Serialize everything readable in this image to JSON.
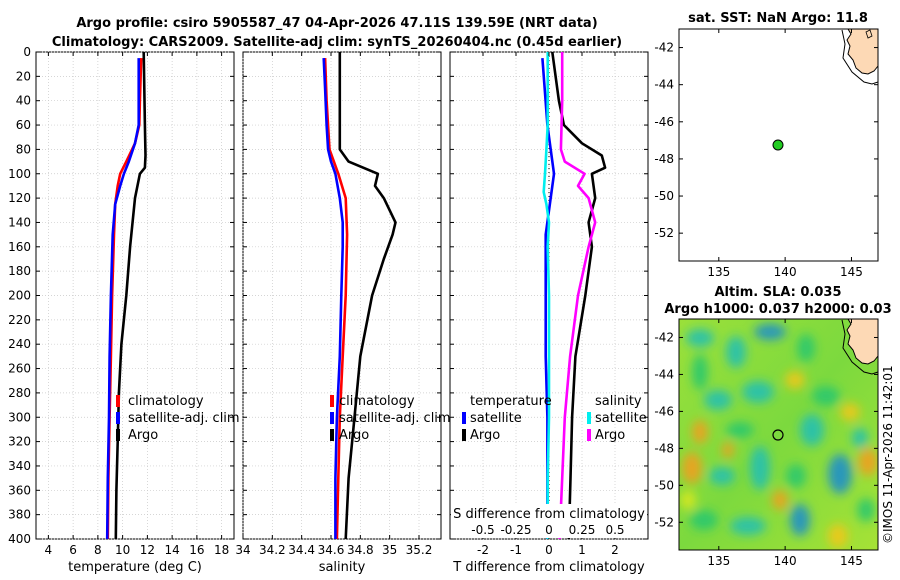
{
  "title": {
    "line1": "Argo profile: csiro 5905587_47 04-Apr-2026 47.11S 139.59E (NRT data)",
    "line2": "Climatology: CARS2009. Satellite-adj clim: synTS_20260404.nc (0.45d earlier)"
  },
  "colors": {
    "climatology": "#ff0000",
    "satellite": "#0000ff",
    "argo": "#000000",
    "salinity_satellite": "#00eeee",
    "salinity_argo": "#ff00ff",
    "land": "#fdd9b5",
    "sst_ocean": "#ffffff",
    "argo_marker": "#22cc22"
  },
  "chart_data": [
    {
      "type": "line",
      "id": "temperature",
      "xlabel": "temperature (deg C)",
      "ylabel": "",
      "xlim": [
        3,
        19
      ],
      "ylim": [
        400,
        0
      ],
      "xticks": [
        4,
        6,
        8,
        10,
        12,
        14,
        16,
        18
      ],
      "yticks": [
        0,
        20,
        40,
        60,
        80,
        100,
        120,
        140,
        160,
        180,
        200,
        220,
        240,
        260,
        280,
        300,
        320,
        340,
        360,
        380,
        400
      ],
      "grid": true,
      "legend_position": "lower-right",
      "legend": [
        "climatology",
        "satellite-adj. clim",
        "Argo"
      ],
      "series": [
        {
          "name": "climatology",
          "color_key": "climatology",
          "depth": [
            5,
            40,
            60,
            75,
            90,
            100,
            110,
            125,
            150,
            200,
            250,
            300,
            350,
            400
          ],
          "values": [
            11.5,
            11.4,
            11.35,
            11.0,
            10.3,
            9.8,
            9.6,
            9.4,
            9.3,
            9.15,
            9.05,
            8.95,
            8.85,
            8.8
          ]
        },
        {
          "name": "satellite-adj. clim",
          "color_key": "satellite",
          "depth": [
            5,
            40,
            60,
            75,
            90,
            100,
            110,
            125,
            150,
            200,
            250,
            300,
            350,
            400
          ],
          "values": [
            11.3,
            11.3,
            11.3,
            11.0,
            10.5,
            10.1,
            9.8,
            9.4,
            9.2,
            9.05,
            8.95,
            8.9,
            8.8,
            8.75
          ]
        },
        {
          "name": "Argo",
          "color_key": "argo",
          "depth": [
            0,
            30,
            60,
            85,
            95,
            100,
            120,
            160,
            200,
            240,
            280,
            320,
            360,
            400
          ],
          "values": [
            11.7,
            11.75,
            11.8,
            11.85,
            11.8,
            11.4,
            11.0,
            10.6,
            10.3,
            9.9,
            9.7,
            9.6,
            9.5,
            9.45
          ]
        }
      ]
    },
    {
      "type": "line",
      "id": "salinity",
      "xlabel": "salinity",
      "ylabel": "",
      "xlim": [
        34.0,
        35.35
      ],
      "ylim": [
        400,
        0
      ],
      "xticks": [
        34,
        34.2,
        34.4,
        34.6,
        34.8,
        35,
        35.2
      ],
      "xticklabels": [
        "34",
        "34.2",
        "34.4",
        "34.6",
        "34.8",
        "35",
        "35.2"
      ],
      "grid": true,
      "legend_position": "lower-right",
      "legend": [
        "climatology",
        "satellite-adj. clim",
        "Argo"
      ],
      "series": [
        {
          "name": "climatology",
          "color_key": "climatology",
          "depth": [
            5,
            40,
            80,
            100,
            120,
            150,
            200,
            250,
            300,
            350,
            400
          ],
          "values": [
            34.56,
            34.57,
            34.59,
            34.65,
            34.7,
            34.71,
            34.7,
            34.68,
            34.66,
            34.65,
            34.64
          ],
          "note": "partially hidden under satellite-adj. clim"
        },
        {
          "name": "satellite-adj. clim",
          "color_key": "satellite",
          "depth": [
            5,
            30,
            60,
            80,
            90,
            100,
            120,
            140,
            160,
            200,
            250,
            300,
            350,
            400
          ],
          "values": [
            34.55,
            34.56,
            34.57,
            34.58,
            34.6,
            34.63,
            34.66,
            34.68,
            34.68,
            34.67,
            34.66,
            34.64,
            34.63,
            34.63
          ]
        },
        {
          "name": "Argo",
          "color_key": "argo",
          "depth": [
            0,
            40,
            80,
            90,
            100,
            110,
            120,
            140,
            150,
            170,
            200,
            250,
            300,
            350,
            400
          ],
          "values": [
            34.66,
            34.66,
            34.66,
            34.72,
            34.92,
            34.9,
            34.96,
            35.04,
            35.02,
            34.96,
            34.88,
            34.8,
            34.76,
            34.72,
            34.7
          ]
        }
      ]
    },
    {
      "type": "line",
      "id": "difference",
      "xlabel": "T difference from climatology",
      "top_label": "S difference from climatology",
      "xlim": [
        -3,
        3
      ],
      "ylim": [
        400,
        0
      ],
      "xticks": [
        -2,
        -1,
        0,
        1,
        2
      ],
      "s_ticklabels": [
        "-0.5",
        "-0.25",
        "0",
        "0.25",
        "0.5"
      ],
      "grid": true,
      "legend_position": "lower-center",
      "legend_temperature_title": "temperature",
      "legend_salinity_title": "salinity",
      "legend_temperature": [
        "satellite",
        "Argo"
      ],
      "legend_salinity": [
        "satellite",
        "Argo"
      ],
      "series": [
        {
          "name": "temperature satellite",
          "color_key": "satellite",
          "depth": [
            5,
            60,
            100,
            150,
            200,
            250,
            300,
            350,
            400
          ],
          "values": [
            -0.2,
            -0.05,
            0.15,
            -0.1,
            -0.1,
            -0.1,
            -0.05,
            -0.05,
            -0.05
          ]
        },
        {
          "name": "temperature Argo",
          "color_key": "argo",
          "depth": [
            0,
            40,
            60,
            75,
            85,
            95,
            100,
            120,
            140,
            160,
            200,
            250,
            300,
            350,
            400
          ],
          "values": [
            0.1,
            0.3,
            0.45,
            1.0,
            1.6,
            1.7,
            1.3,
            1.4,
            1.2,
            1.3,
            1.1,
            0.8,
            0.7,
            0.65,
            0.6
          ]
        },
        {
          "name": "salinity satellite",
          "color_key": "salinity_satellite",
          "depth": [
            0,
            30,
            60,
            80,
            100,
            115,
            125,
            140,
            160,
            200,
            250,
            300,
            350,
            400
          ],
          "values": [
            -0.01,
            -0.01,
            -0.01,
            -0.02,
            -0.03,
            -0.04,
            -0.02,
            0.0,
            -0.01,
            0.0,
            0.0,
            0.0,
            -0.01,
            -0.01
          ]
        },
        {
          "name": "salinity Argo",
          "color_key": "salinity_argo",
          "depth": [
            0,
            40,
            80,
            90,
            100,
            110,
            120,
            140,
            160,
            200,
            250,
            300,
            350,
            400
          ],
          "values": [
            0.1,
            0.1,
            0.09,
            0.12,
            0.27,
            0.22,
            0.3,
            0.35,
            0.3,
            0.22,
            0.16,
            0.12,
            0.1,
            0.08
          ]
        }
      ]
    },
    {
      "type": "map",
      "id": "sst_map",
      "title": "sat. SST: NaN Argo: 11.8",
      "xticks": [
        135,
        140,
        145
      ],
      "yticks": [
        -42,
        -44,
        -46,
        -48,
        -50,
        -52
      ],
      "xlim": [
        132,
        147
      ],
      "ylim": [
        -53.5,
        -41
      ],
      "argo_position": {
        "lon": 139.59,
        "lat": -47.11
      }
    },
    {
      "type": "heatmap",
      "id": "sla_map",
      "title_line1": "Altim. SLA: 0.035",
      "title_line2": "Argo h1000: 0.037 h2000: 0.03",
      "xticks": [
        135,
        140,
        145
      ],
      "yticks": [
        -42,
        -44,
        -46,
        -48,
        -50,
        -52
      ],
      "xlim": [
        132,
        147
      ],
      "ylim": [
        -53.5,
        -41
      ],
      "argo_position": {
        "lon": 139.59,
        "lat": -47.11
      },
      "colormap": [
        "#1e90c8",
        "#22c0b0",
        "#28c86e",
        "#8fe234",
        "#d9e81c",
        "#f0c81a",
        "#f0a020"
      ]
    }
  ],
  "credit": "©IMOS 11-Apr-2026 11:42:01"
}
